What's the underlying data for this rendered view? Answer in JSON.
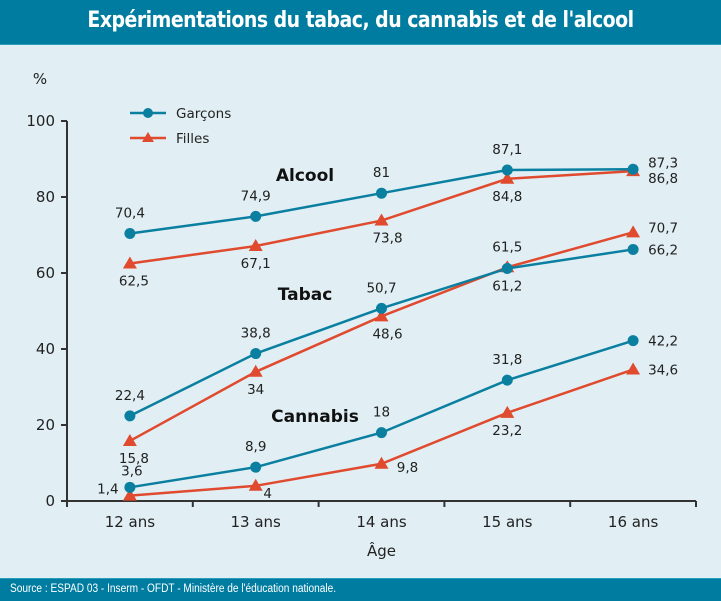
{
  "header": {
    "title": "Expérimentations du tabac, du cannabis et de l'alcool"
  },
  "footer": {
    "source": "Source : ESPAD 03 - Inserm - OFDT - Ministère de l'éducation nationale."
  },
  "colors": {
    "header_bg": "#007ca0",
    "plot_bg": "#e1eff4",
    "garcons": "#0a7fa0",
    "filles": "#e04a2e",
    "axis": "#333333"
  },
  "chart_data": {
    "type": "line",
    "title": "Expérimentations du tabac, du cannabis et de l'alcool",
    "xlabel": "Âge",
    "ylabel": "%",
    "categories": [
      "12 ans",
      "13 ans",
      "14 ans",
      "15 ans",
      "16 ans"
    ],
    "ylim": [
      0,
      100
    ],
    "yticks": [
      0,
      20,
      40,
      60,
      80,
      100
    ],
    "ytick_labels": [
      "0",
      "20",
      "40",
      "60",
      "80",
      "100"
    ],
    "grid": false,
    "legend": {
      "placement": "top-left",
      "entries": [
        {
          "name": "Garçons",
          "marker": "circle",
          "color": "#0a7fa0"
        },
        {
          "name": "Filles",
          "marker": "triangle",
          "color": "#e04a2e"
        }
      ]
    },
    "groups": [
      {
        "name": "Alcool",
        "series": [
          {
            "name": "Garçons",
            "values": [
              70.4,
              74.9,
              81,
              87.1,
              87.3
            ],
            "labels": [
              "70,4",
              "74,9",
              "81",
              "87,1",
              "87,3"
            ]
          },
          {
            "name": "Filles",
            "values": [
              62.5,
              67.1,
              73.8,
              84.8,
              86.8
            ],
            "labels": [
              "62,5",
              "67,1",
              "73,8",
              "84,8",
              "86,8"
            ]
          }
        ]
      },
      {
        "name": "Tabac",
        "series": [
          {
            "name": "Garçons",
            "values": [
              22.4,
              38.8,
              50.7,
              61.2,
              66.2
            ],
            "labels": [
              "22,4",
              "38,8",
              "50,7",
              "61,2",
              "66,2"
            ]
          },
          {
            "name": "Filles",
            "values": [
              15.8,
              34,
              48.6,
              61.5,
              70.7
            ],
            "labels": [
              "15,8",
              "34",
              "48,6",
              "61,5",
              "70,7"
            ]
          }
        ]
      },
      {
        "name": "Cannabis",
        "series": [
          {
            "name": "Garçons",
            "values": [
              3.6,
              8.9,
              18,
              31.8,
              42.2
            ],
            "labels": [
              "3,6",
              "8,9",
              "18",
              "31,8",
              "42,2"
            ]
          },
          {
            "name": "Filles",
            "values": [
              1.4,
              4,
              9.8,
              23.2,
              34.6
            ],
            "labels": [
              "1,4",
              "4",
              "9,8",
              "23,2",
              "34,6"
            ]
          }
        ]
      }
    ]
  }
}
